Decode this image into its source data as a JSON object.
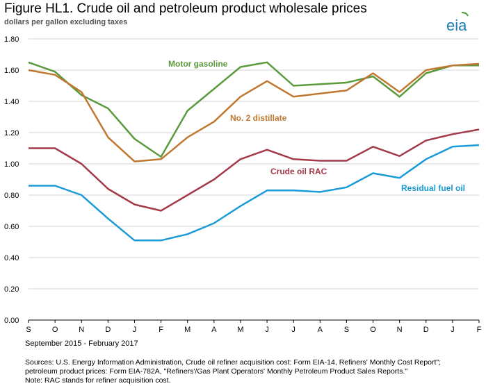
{
  "header": {
    "title": "Figure HL1. Crude oil and petroleum product wholesale prices",
    "subtitle": "dollars per gallon excluding taxes"
  },
  "logo": {
    "text": "eia",
    "icon": "eia-logo-icon",
    "color": "#1a7ab5",
    "accent": "#4a9e3a"
  },
  "footer": {
    "period": "September 2015 - February 2017",
    "sources_line1": "Sources:  U.S. Energy Information Administration, Crude oil refiner acquisition cost:  Form EIA-14, Refiners' Monthly Cost Report\";",
    "sources_line2": "petroleum product prices:  Form EIA-782A, \"Refiners'/Gas Plant Operators' Monthly Petroleum Product Sales Reports.\"",
    "note": "Note:  RAC stands for refiner acquisition cost."
  },
  "chart_data": {
    "type": "line",
    "title": "Figure HL1. Crude oil and petroleum product wholesale prices",
    "ylabel": "dollars per gallon excluding taxes",
    "xlabel": "September 2015 - February 2017",
    "ylim": [
      0,
      1.8
    ],
    "yticks": [
      "0.00",
      "0.20",
      "0.40",
      "0.60",
      "0.80",
      "1.00",
      "1.20",
      "1.40",
      "1.60",
      "1.80"
    ],
    "x": [
      "S",
      "O",
      "N",
      "D",
      "J",
      "F",
      "M",
      "A",
      "M",
      "J",
      "J",
      "A",
      "S",
      "O",
      "N",
      "D",
      "J",
      "F"
    ],
    "grid": true,
    "series": [
      {
        "name": "Motor gasoline",
        "color": "#5a9a3c",
        "values": [
          1.65,
          1.59,
          1.44,
          1.355,
          1.16,
          1.045,
          1.34,
          1.48,
          1.62,
          1.65,
          1.5,
          1.51,
          1.52,
          1.56,
          1.43,
          1.58,
          1.63,
          1.63
        ]
      },
      {
        "name": "No. 2 distillate",
        "color": "#c07830",
        "values": [
          1.6,
          1.57,
          1.46,
          1.17,
          1.015,
          1.03,
          1.17,
          1.27,
          1.43,
          1.53,
          1.43,
          1.45,
          1.47,
          1.58,
          1.46,
          1.6,
          1.63,
          1.64
        ]
      },
      {
        "name": "Crude oil RAC",
        "color": "#a33a4a",
        "values": [
          1.1,
          1.1,
          1.0,
          0.84,
          0.74,
          0.7,
          0.8,
          0.9,
          1.03,
          1.09,
          1.03,
          1.02,
          1.02,
          1.11,
          1.05,
          1.15,
          1.19,
          1.22
        ]
      },
      {
        "name": "Residual fuel oil",
        "color": "#1a9ad6",
        "values": [
          0.86,
          0.86,
          0.8,
          0.65,
          0.51,
          0.51,
          0.55,
          0.62,
          0.73,
          0.83,
          0.83,
          0.82,
          0.85,
          0.94,
          0.91,
          1.03,
          1.11,
          1.12
        ]
      }
    ]
  }
}
